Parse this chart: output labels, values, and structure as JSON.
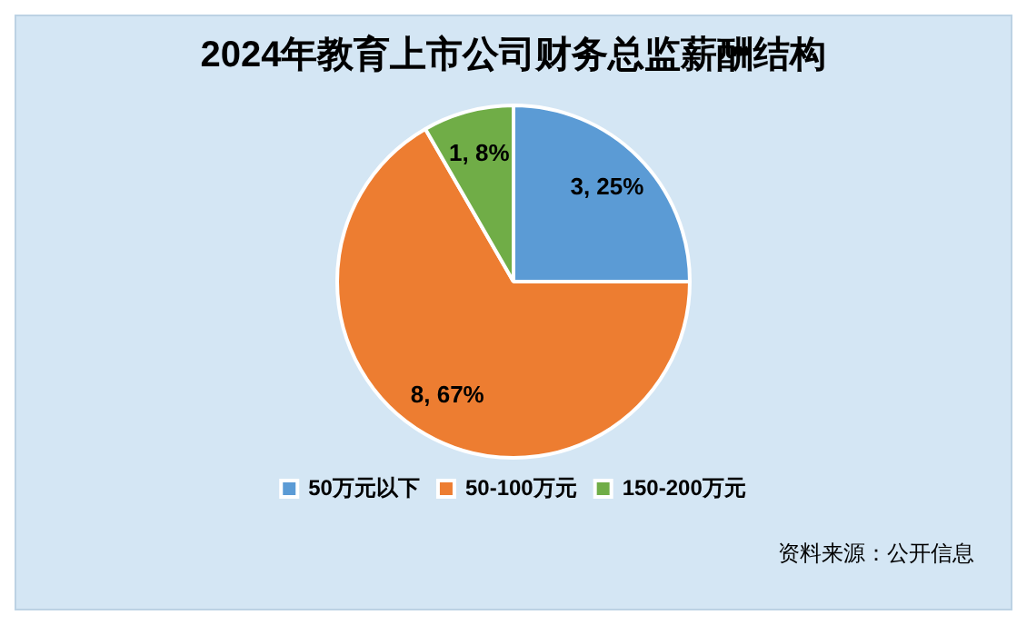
{
  "chart_data": {
    "type": "pie",
    "title": "2024年教育上市公司财务总监薪酬结构",
    "categories": [
      "50万元以下",
      "50-100万元",
      "150-200万元"
    ],
    "values": [
      3,
      8,
      1
    ],
    "colors": [
      "#5b9bd5",
      "#ed7d31",
      "#70ad47"
    ],
    "value_labels": [
      "3, 25%",
      "8, 67%",
      "1, 8%"
    ],
    "legend": "bottom",
    "annotations": [
      "资料来源：公开信息"
    ]
  }
}
